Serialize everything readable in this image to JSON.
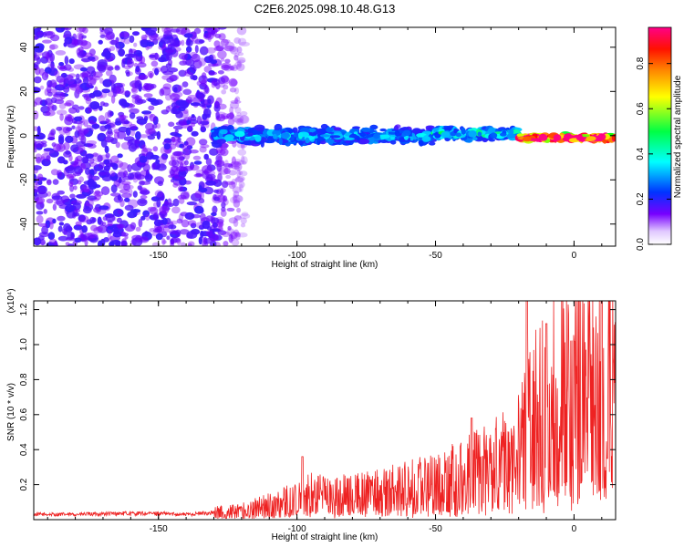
{
  "title": "C2E6.2025.098.10.48.G13",
  "colors": {
    "snr_line": "#ee2222",
    "frame": "#000000",
    "background": "#ffffff"
  },
  "chart_data": [
    {
      "type": "heatmap",
      "name": "spectrogram",
      "xlabel": "Height of straight line (km)",
      "ylabel": "Frequency (Hz)",
      "xlim": [
        -195,
        15
      ],
      "ylim": [
        -50,
        49
      ],
      "xticks": [
        -150,
        -100,
        -50,
        0
      ],
      "yticks": [
        -40,
        -20,
        0,
        20,
        40
      ],
      "grid": false,
      "colorbar": {
        "label": "Normalized spectral amplitude",
        "range": [
          0.0,
          0.96
        ],
        "ticks": [
          0.0,
          0.2,
          0.4,
          0.6,
          0.8
        ],
        "colormap": [
          "#ffffff",
          "#7700ff",
          "#0033ff",
          "#00ffff",
          "#00ff00",
          "#ffff00",
          "#ff8800",
          "#ff0000",
          "#ff0088"
        ]
      },
      "regions": [
        {
          "x_range": [
            -195,
            -130
          ],
          "freq_range": [
            -50,
            49
          ],
          "amplitude": 0.06,
          "description": "broad diffuse noise"
        },
        {
          "x_range": [
            -130,
            -50
          ],
          "freq_center": 0,
          "freq_width": 8,
          "amplitude": 0.2
        },
        {
          "x_range": [
            -50,
            -20
          ],
          "freq_center": 1,
          "freq_width": 6,
          "amplitude": 0.25
        },
        {
          "x_range": [
            -20,
            15
          ],
          "freq_center": -1,
          "freq_width": 3,
          "amplitude": 0.9
        }
      ]
    },
    {
      "type": "line",
      "name": "snr",
      "xlabel": "Height of straight line (km)",
      "ylabel": "SNR (10 * v/v)",
      "y_multiplier": "(x10⁴)",
      "xlim": [
        -195,
        15
      ],
      "ylim": [
        0,
        1.25
      ],
      "xticks": [
        -150,
        -100,
        -50,
        0
      ],
      "yticks": [
        0.2,
        0.4,
        0.6,
        0.8,
        1.0,
        1.2
      ],
      "grid": false,
      "series": [
        {
          "x": [
            -195,
            -180,
            -165,
            -150,
            -140,
            -130,
            -120,
            -110,
            -100,
            -95,
            -90,
            -80,
            -70,
            -60,
            -50,
            -40,
            -30,
            -20,
            -15,
            -10,
            -5,
            0,
            5,
            10,
            15
          ],
          "y": [
            0.03,
            0.03,
            0.035,
            0.035,
            0.03,
            0.04,
            0.05,
            0.08,
            0.12,
            0.15,
            0.13,
            0.14,
            0.16,
            0.18,
            0.2,
            0.25,
            0.3,
            0.38,
            0.55,
            0.65,
            0.72,
            0.75,
            0.78,
            0.8,
            0.85
          ],
          "peaks": [
            {
              "x": -98,
              "y": 0.36
            },
            {
              "x": -37,
              "y": 0.58
            },
            {
              "x": -17,
              "y": 1.25
            },
            {
              "x": -10,
              "y": 1.12
            },
            {
              "x": 10,
              "y": 1.25
            },
            {
              "x": 12,
              "y": 0.35
            }
          ]
        }
      ]
    }
  ]
}
